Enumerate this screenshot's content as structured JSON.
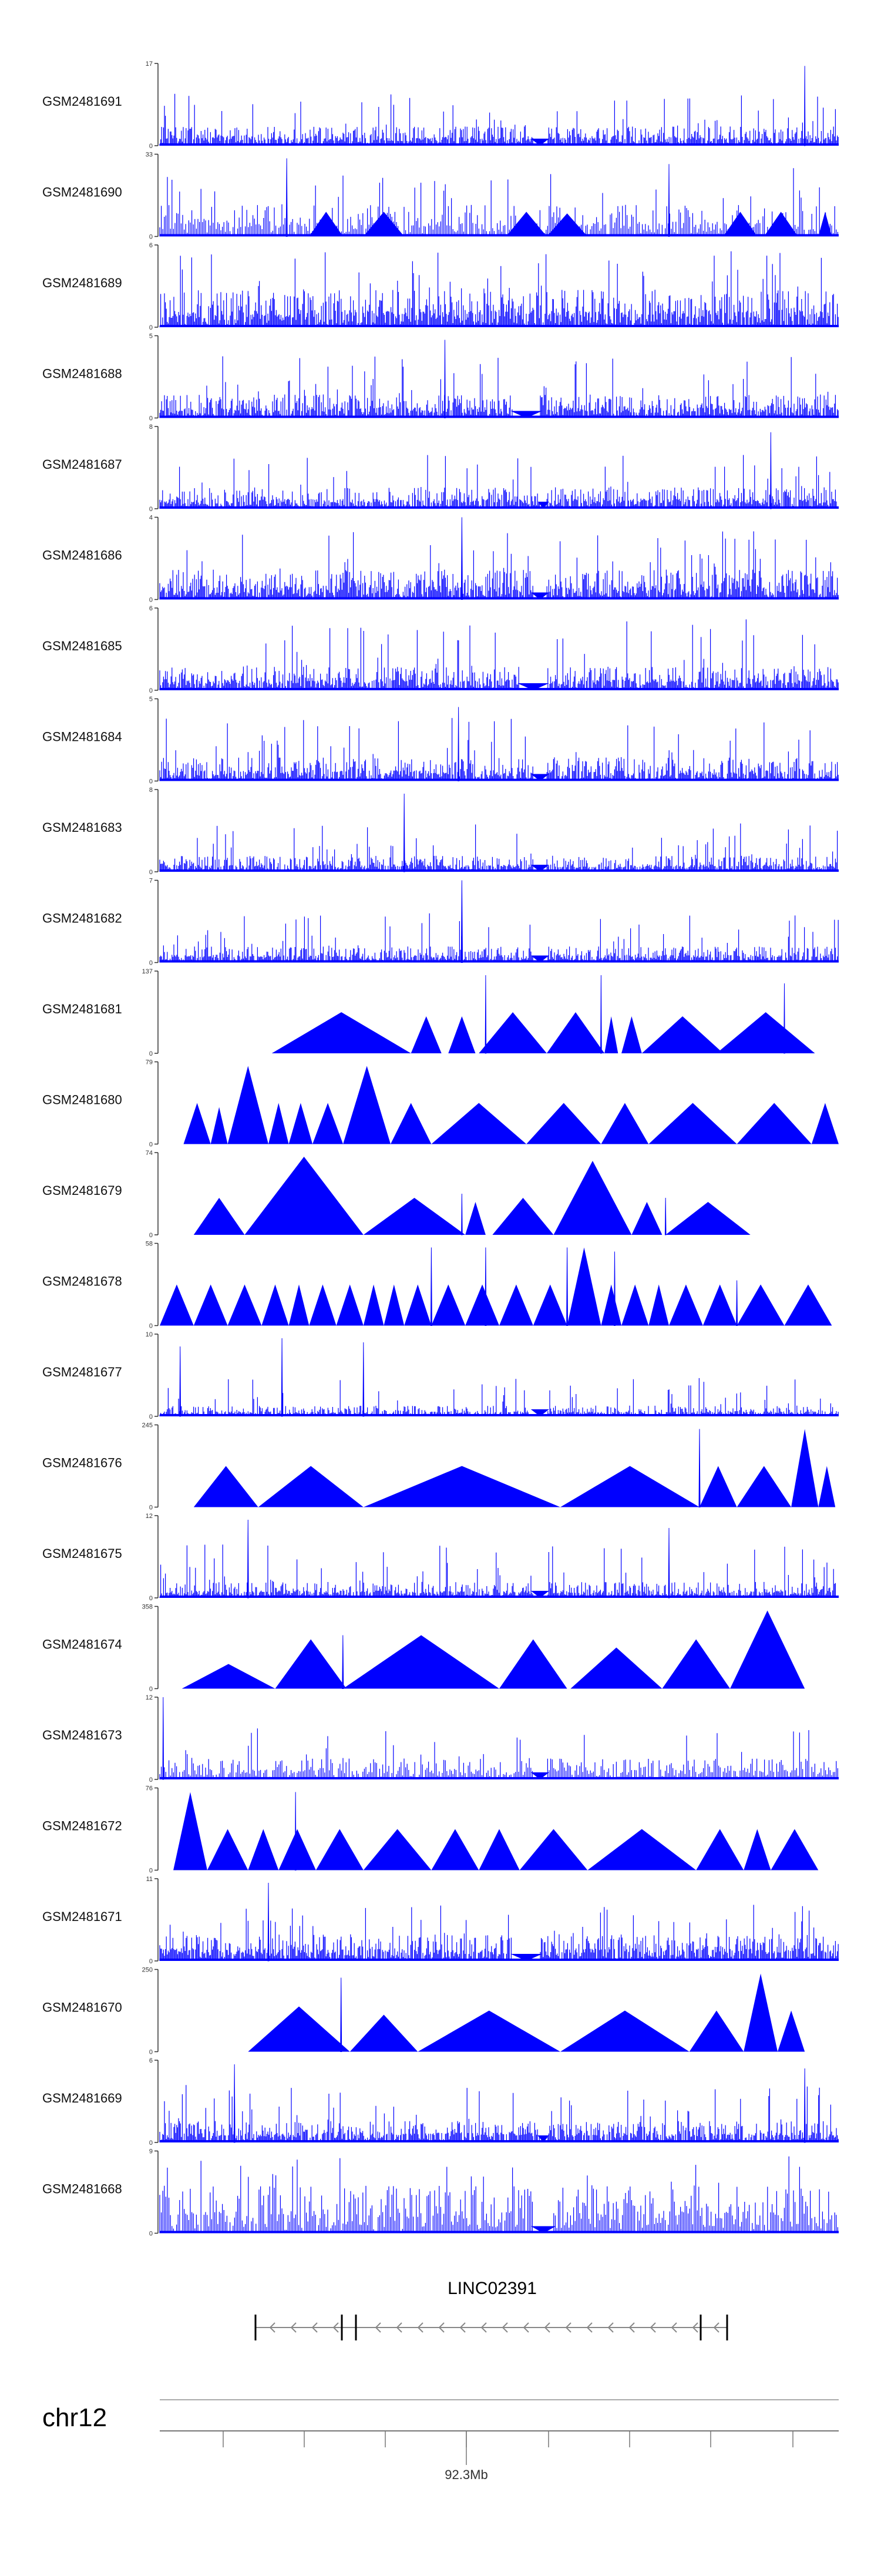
{
  "figure": {
    "chromosome": "chr12",
    "gene_label": "LINC02391",
    "position_label": "92.3Mb",
    "colors": {
      "signal": "#0000FF",
      "axis": "#333333",
      "gene": "#000000",
      "arrow": "#888888"
    }
  },
  "chart_data": {
    "type": "area",
    "x_axis": {
      "tick_count": 11,
      "labeled_tick": "92.3Mb",
      "labeled_tick_index": 4
    },
    "series": [
      {
        "name": "GSM2481691",
        "ymin": 0,
        "ymax": 17,
        "style": "dense",
        "seed": 11,
        "fill": 0.18,
        "spike": 0.45,
        "gaps": [
          [
            0.55,
            0.57
          ]
        ],
        "peaks": [
          [
            0.95,
            0.97,
            0.35
          ]
        ],
        "polys": []
      },
      {
        "name": "GSM2481690",
        "ymin": 0,
        "ymax": 33,
        "style": "sparse",
        "seed": 12,
        "fill": 0.3,
        "spike": 0.55,
        "gaps": [],
        "peaks": [
          [
            0.187,
            0.95,
            0.5
          ],
          [
            0.75,
            0.88,
            0.4
          ]
        ],
        "polys": [
          [
            0.22,
            0.27,
            0.3
          ],
          [
            0.3,
            0.36,
            0.3
          ],
          [
            0.51,
            0.57,
            0.3
          ],
          [
            0.57,
            0.63,
            0.28
          ],
          [
            0.83,
            0.88,
            0.3
          ],
          [
            0.89,
            0.94,
            0.3
          ],
          [
            0.97,
            0.99,
            0.3
          ]
        ]
      },
      {
        "name": "GSM2481689",
        "ymin": 0,
        "ymax": 6,
        "style": "dense",
        "seed": 13,
        "fill": 0.35,
        "spike": 0.6,
        "gaps": [],
        "peaks": [],
        "polys": []
      },
      {
        "name": "GSM2481688",
        "ymin": 0,
        "ymax": 5,
        "style": "dense",
        "seed": 14,
        "fill": 0.22,
        "spike": 0.55,
        "gaps": [
          [
            0.52,
            0.56
          ]
        ],
        "peaks": [
          [
            0.42,
            0.95,
            0.4
          ]
        ],
        "polys": []
      },
      {
        "name": "GSM2481687",
        "ymin": 0,
        "ymax": 8,
        "style": "dense",
        "seed": 15,
        "fill": 0.2,
        "spike": 0.5,
        "gaps": [
          [
            0.56,
            0.57
          ]
        ],
        "peaks": [
          [
            0.9,
            0.93,
            0.4
          ]
        ],
        "polys": []
      },
      {
        "name": "GSM2481686",
        "ymin": 0,
        "ymax": 4,
        "style": "dense",
        "seed": 16,
        "fill": 0.28,
        "spike": 0.55,
        "gaps": [
          [
            0.55,
            0.57
          ]
        ],
        "peaks": [
          [
            0.445,
            1.0,
            0.55
          ]
        ],
        "polys": []
      },
      {
        "name": "GSM2481685",
        "ymin": 0,
        "ymax": 6,
        "style": "dense",
        "seed": 17,
        "fill": 0.22,
        "spike": 0.65,
        "gaps": [
          [
            0.53,
            0.57
          ]
        ],
        "peaks": [],
        "polys": []
      },
      {
        "name": "GSM2481684",
        "ymin": 0,
        "ymax": 5,
        "style": "dense",
        "seed": 18,
        "fill": 0.22,
        "spike": 0.55,
        "gaps": [
          [
            0.55,
            0.57
          ]
        ],
        "peaks": [
          [
            0.44,
            0.9,
            0.4
          ]
        ],
        "polys": []
      },
      {
        "name": "GSM2481683",
        "ymin": 0,
        "ymax": 8,
        "style": "dense",
        "seed": 19,
        "fill": 0.15,
        "spike": 0.45,
        "gaps": [
          [
            0.55,
            0.57
          ]
        ],
        "peaks": [
          [
            0.36,
            0.95,
            0.45
          ]
        ],
        "polys": []
      },
      {
        "name": "GSM2481682",
        "ymin": 0,
        "ymax": 7,
        "style": "dense",
        "seed": 20,
        "fill": 0.15,
        "spike": 0.45,
        "gaps": [
          [
            0.55,
            0.57
          ]
        ],
        "peaks": [
          [
            0.445,
            1.0,
            0.6
          ]
        ],
        "polys": []
      },
      {
        "name": "GSM2481681",
        "ymin": 0,
        "ymax": 137,
        "style": "tri",
        "seed": 21,
        "fill": 0,
        "spike": 0,
        "gaps": [],
        "peaks": [
          [
            0.48,
            0.95,
            0.4
          ],
          [
            0.65,
            0.95,
            0.4
          ],
          [
            0.92,
            0.85,
            0.4
          ]
        ],
        "polys": [
          [
            0.165,
            0.37,
            0.5
          ],
          [
            0.37,
            0.415,
            0.45
          ],
          [
            0.425,
            0.465,
            0.45
          ],
          [
            0.47,
            0.57,
            0.5
          ],
          [
            0.57,
            0.655,
            0.5
          ],
          [
            0.655,
            0.675,
            0.45
          ],
          [
            0.68,
            0.71,
            0.45
          ],
          [
            0.71,
            0.83,
            0.45
          ],
          [
            0.82,
            0.965,
            0.5
          ]
        ]
      },
      {
        "name": "GSM2481680",
        "ymin": 0,
        "ymax": 79,
        "style": "tri",
        "seed": 22,
        "fill": 0,
        "spike": 0,
        "gaps": [],
        "peaks": [],
        "polys": [
          [
            0.035,
            0.075,
            0.5
          ],
          [
            0.075,
            0.1,
            0.45
          ],
          [
            0.1,
            0.16,
            0.95
          ],
          [
            0.16,
            0.19,
            0.5
          ],
          [
            0.19,
            0.225,
            0.5
          ],
          [
            0.225,
            0.27,
            0.5
          ],
          [
            0.27,
            0.34,
            0.95
          ],
          [
            0.34,
            0.4,
            0.5
          ],
          [
            0.4,
            0.54,
            0.5
          ],
          [
            0.54,
            0.65,
            0.5
          ],
          [
            0.65,
            0.72,
            0.5
          ],
          [
            0.72,
            0.85,
            0.5
          ],
          [
            0.85,
            0.96,
            0.5
          ],
          [
            0.96,
            1.0,
            0.5
          ]
        ]
      },
      {
        "name": "GSM2481679",
        "ymin": 0,
        "ymax": 74,
        "style": "tri",
        "seed": 23,
        "fill": 0,
        "spike": 0,
        "gaps": [],
        "peaks": [
          [
            0.445,
            0.5,
            0.4
          ],
          [
            0.745,
            0.45,
            0.4
          ]
        ],
        "polys": [
          [
            0.05,
            0.125,
            0.45
          ],
          [
            0.125,
            0.3,
            0.95
          ],
          [
            0.3,
            0.45,
            0.45
          ],
          [
            0.45,
            0.48,
            0.4
          ],
          [
            0.49,
            0.58,
            0.45
          ],
          [
            0.58,
            0.695,
            0.9
          ],
          [
            0.695,
            0.74,
            0.4
          ],
          [
            0.745,
            0.87,
            0.4
          ]
        ]
      },
      {
        "name": "GSM2481678",
        "ymin": 0,
        "ymax": 58,
        "style": "tri",
        "seed": 24,
        "fill": 0,
        "spike": 0,
        "gaps": [],
        "peaks": [
          [
            0.4,
            0.95,
            0.5
          ],
          [
            0.48,
            0.95,
            0.5
          ],
          [
            0.6,
            0.95,
            0.5
          ],
          [
            0.67,
            0.9,
            0.5
          ],
          [
            0.85,
            0.55,
            0.5
          ]
        ],
        "polys": [
          [
            0.0,
            0.05,
            0.5
          ],
          [
            0.05,
            0.1,
            0.5
          ],
          [
            0.1,
            0.15,
            0.5
          ],
          [
            0.15,
            0.19,
            0.5
          ],
          [
            0.19,
            0.22,
            0.5
          ],
          [
            0.22,
            0.26,
            0.5
          ],
          [
            0.26,
            0.3,
            0.5
          ],
          [
            0.3,
            0.33,
            0.5
          ],
          [
            0.33,
            0.36,
            0.5
          ],
          [
            0.36,
            0.4,
            0.5
          ],
          [
            0.4,
            0.45,
            0.5
          ],
          [
            0.45,
            0.5,
            0.5
          ],
          [
            0.5,
            0.55,
            0.5
          ],
          [
            0.55,
            0.6,
            0.5
          ],
          [
            0.6,
            0.65,
            0.95
          ],
          [
            0.65,
            0.68,
            0.5
          ],
          [
            0.68,
            0.72,
            0.5
          ],
          [
            0.72,
            0.75,
            0.5
          ],
          [
            0.75,
            0.8,
            0.5
          ],
          [
            0.8,
            0.85,
            0.5
          ],
          [
            0.85,
            0.92,
            0.5
          ],
          [
            0.92,
            0.99,
            0.5
          ]
        ]
      },
      {
        "name": "GSM2481677",
        "ymin": 0,
        "ymax": 10,
        "style": "dense",
        "seed": 25,
        "fill": 0.1,
        "spike": 0.4,
        "gaps": [
          [
            0.55,
            0.57
          ]
        ],
        "peaks": [
          [
            0.03,
            0.85,
            0.45
          ],
          [
            0.18,
            0.95,
            0.45
          ],
          [
            0.3,
            0.9,
            0.45
          ]
        ],
        "polys": []
      },
      {
        "name": "GSM2481676",
        "ymin": 0,
        "ymax": 245,
        "style": "tri",
        "seed": 26,
        "fill": 0,
        "spike": 0,
        "gaps": [],
        "peaks": [
          [
            0.795,
            0.95,
            0.5
          ]
        ],
        "polys": [
          [
            0.05,
            0.145,
            0.5
          ],
          [
            0.145,
            0.3,
            0.5
          ],
          [
            0.3,
            0.59,
            0.5
          ],
          [
            0.59,
            0.795,
            0.5
          ],
          [
            0.795,
            0.85,
            0.5
          ],
          [
            0.85,
            0.93,
            0.5
          ],
          [
            0.93,
            0.97,
            0.95
          ],
          [
            0.97,
            0.995,
            0.5
          ]
        ]
      },
      {
        "name": "GSM2481675",
        "ymin": 0,
        "ymax": 12,
        "style": "dense",
        "seed": 27,
        "fill": 0.15,
        "spike": 0.5,
        "gaps": [
          [
            0.55,
            0.57
          ]
        ],
        "peaks": [
          [
            0.13,
            0.95,
            0.45
          ],
          [
            0.75,
            0.85,
            0.45
          ]
        ],
        "polys": []
      },
      {
        "name": "GSM2481674",
        "ymin": 0,
        "ymax": 358,
        "style": "tri",
        "seed": 27,
        "fill": 0,
        "spike": 0,
        "gaps": [],
        "peaks": [
          [
            0.2697,
            0.65,
            0.5
          ]
        ],
        "polys": [
          [
            0.0325,
            0.17,
            0.3
          ],
          [
            0.17,
            0.275,
            0.6
          ],
          [
            0.27,
            0.5,
            0.65
          ],
          [
            0.5,
            0.6,
            0.6
          ],
          [
            0.605,
            0.74,
            0.5
          ],
          [
            0.74,
            0.84,
            0.6
          ],
          [
            0.84,
            0.95,
            0.95
          ]
        ]
      },
      {
        "name": "GSM2481673",
        "ymin": 0,
        "ymax": 12,
        "style": "sparse",
        "seed": 28,
        "fill": 0.2,
        "spike": 0.45,
        "gaps": [
          [
            0.55,
            0.57
          ]
        ],
        "peaks": [
          [
            0.005,
            1.0,
            0.4
          ]
        ],
        "polys": []
      },
      {
        "name": "GSM2481672",
        "ymin": 0,
        "ymax": 76,
        "style": "tri",
        "seed": 29,
        "fill": 0,
        "spike": 0,
        "gaps": [],
        "peaks": [
          [
            0.2,
            0.95,
            0.4
          ]
        ],
        "polys": [
          [
            0.02,
            0.07,
            0.95
          ],
          [
            0.07,
            0.13,
            0.5
          ],
          [
            0.13,
            0.175,
            0.5
          ],
          [
            0.175,
            0.23,
            0.5
          ],
          [
            0.23,
            0.3,
            0.5
          ],
          [
            0.3,
            0.4,
            0.5
          ],
          [
            0.4,
            0.47,
            0.5
          ],
          [
            0.47,
            0.53,
            0.5
          ],
          [
            0.53,
            0.63,
            0.5
          ],
          [
            0.63,
            0.79,
            0.5
          ],
          [
            0.79,
            0.86,
            0.5
          ],
          [
            0.86,
            0.9,
            0.5
          ],
          [
            0.9,
            0.97,
            0.5
          ]
        ]
      },
      {
        "name": "GSM2481671",
        "ymin": 0,
        "ymax": 11,
        "style": "dense",
        "seed": 30,
        "fill": 0.25,
        "spike": 0.45,
        "gaps": [
          [
            0.52,
            0.56
          ]
        ],
        "peaks": [
          [
            0.16,
            0.95,
            0.45
          ]
        ],
        "polys": []
      },
      {
        "name": "GSM2481670",
        "ymin": 0,
        "ymax": 250,
        "style": "tri",
        "seed": 31,
        "fill": 0,
        "spike": 0,
        "gaps": [],
        "peaks": [
          [
            0.267,
            0.9,
            0.5
          ]
        ],
        "polys": [
          [
            0.13,
            0.28,
            0.55
          ],
          [
            0.28,
            0.38,
            0.45
          ],
          [
            0.38,
            0.59,
            0.5
          ],
          [
            0.59,
            0.78,
            0.5
          ],
          [
            0.78,
            0.86,
            0.5
          ],
          [
            0.86,
            0.91,
            0.95
          ],
          [
            0.91,
            0.95,
            0.5
          ]
        ]
      },
      {
        "name": "GSM2481669",
        "ymin": 0,
        "ymax": 6,
        "style": "dense",
        "seed": 32,
        "fill": 0.2,
        "spike": 0.5,
        "gaps": [
          [
            0.56,
            0.57
          ]
        ],
        "peaks": [
          [
            0.11,
            0.95,
            0.45
          ],
          [
            0.95,
            0.9,
            0.45
          ]
        ],
        "polys": []
      },
      {
        "name": "GSM2481668",
        "ymin": 0,
        "ymax": 9,
        "style": "sparse",
        "seed": 33,
        "fill": 0.45,
        "spike": 0.5,
        "gaps": [
          [
            0.55,
            0.58
          ]
        ],
        "peaks": [],
        "polys": []
      }
    ]
  }
}
